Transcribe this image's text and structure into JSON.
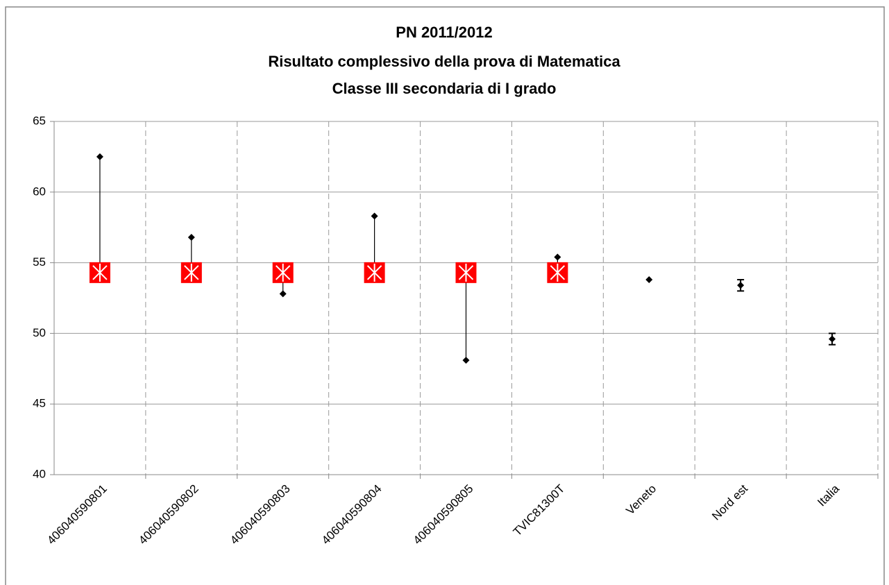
{
  "chart_data": {
    "type": "dot",
    "title": [
      "PN 2011/2012",
      "Risultato complessivo della prova di Matematica",
      "Classe III secondaria di I grado"
    ],
    "categories": [
      "406040590801",
      "406040590802",
      "406040590803",
      "406040590804",
      "406040590805",
      "TVIC81300T",
      "Veneto",
      "Nord est",
      "Italia"
    ],
    "series": [
      {
        "color": "#000000",
        "values": [
          62.5,
          56.8,
          52.8,
          58.3,
          48.1,
          55.4,
          53.8,
          53.4,
          49.6
        ],
        "errors": [
          null,
          null,
          null,
          null,
          null,
          null,
          null,
          0.4,
          0.4
        ]
      },
      {
        "color": "#ff0000",
        "values": [
          54.3,
          54.3,
          54.3,
          54.3,
          54.3,
          54.3,
          null,
          null,
          null
        ]
      }
    ],
    "ylim": [
      40,
      65
    ],
    "yticks": [
      40,
      45,
      50,
      55,
      60,
      65
    ],
    "grid": true
  }
}
